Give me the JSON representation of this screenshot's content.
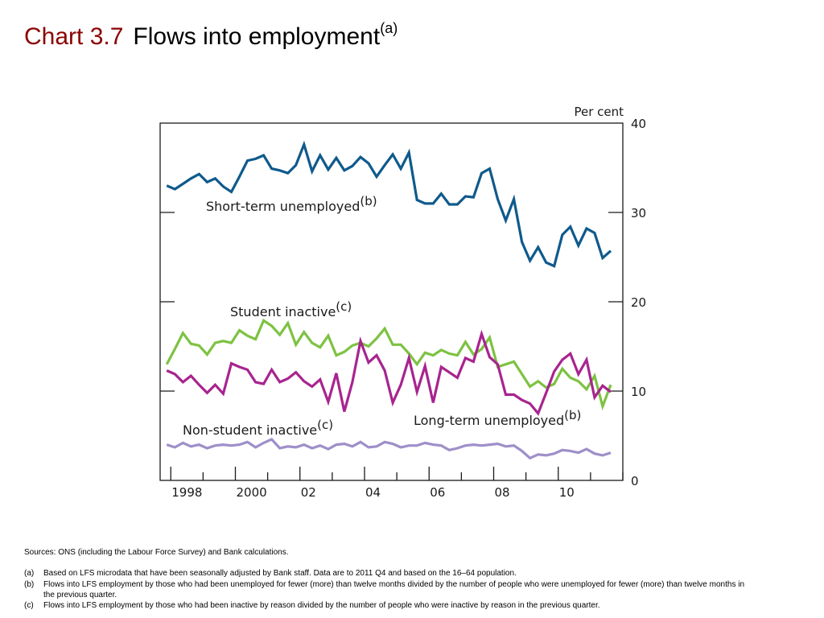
{
  "header": {
    "chart_number": "Chart 3.7",
    "title": "Flows into employment",
    "title_note": "(a)"
  },
  "chart_data": {
    "type": "line",
    "ylabel": "Per cent",
    "ylim": [
      0,
      40
    ],
    "yticks": [
      "0",
      "10",
      "20",
      "30",
      "40"
    ],
    "xlim": [
      1997.67,
      2012.0
    ],
    "xtick_labels": [
      {
        "x": 1998,
        "label": "1998"
      },
      {
        "x": 2000,
        "label": "2000"
      },
      {
        "x": 2002,
        "label": "02"
      },
      {
        "x": 2004,
        "label": "04"
      },
      {
        "x": 2006,
        "label": "06"
      },
      {
        "x": 2008,
        "label": "08"
      },
      {
        "x": 2010,
        "label": "10"
      }
    ],
    "grid": false,
    "x_start": 1997.875,
    "x_step": 0.25,
    "series": [
      {
        "name": "Short-term unemployed",
        "note": "(b)",
        "color": "#0f5a8c",
        "values": [
          33.0,
          32.6,
          33.2,
          33.8,
          34.3,
          33.4,
          33.8,
          32.9,
          32.3,
          34.0,
          35.8,
          36.0,
          36.4,
          34.9,
          34.7,
          34.4,
          35.3,
          37.6,
          34.6,
          36.4,
          34.8,
          36.1,
          34.7,
          35.2,
          36.2,
          35.5,
          34.0,
          35.3,
          36.5,
          34.9,
          36.7,
          31.4,
          31.0,
          31.0,
          32.1,
          30.9,
          30.9,
          31.8,
          31.7,
          34.4,
          34.9,
          31.5,
          29.1,
          31.5,
          26.7,
          24.6,
          26.1,
          24.4,
          24.0,
          27.5,
          28.4,
          26.3,
          28.2,
          27.7,
          24.9,
          25.7
        ]
      },
      {
        "name": "Student inactive",
        "note": "(c)",
        "color": "#7dc242",
        "values": [
          13.0,
          14.7,
          16.5,
          15.3,
          15.1,
          14.1,
          15.4,
          15.6,
          15.4,
          16.8,
          16.2,
          15.8,
          17.9,
          17.3,
          16.3,
          17.6,
          15.2,
          16.6,
          15.4,
          14.9,
          16.2,
          14.0,
          14.4,
          15.1,
          15.4,
          15.0,
          15.9,
          17.0,
          15.2,
          15.2,
          14.2,
          13.0,
          14.3,
          14.0,
          14.6,
          14.2,
          14.0,
          15.5,
          14.1,
          14.7,
          16.0,
          12.7,
          13.0,
          13.3,
          11.9,
          10.5,
          11.1,
          10.4,
          10.8,
          12.5,
          11.5,
          11.1,
          10.2,
          11.7,
          8.3,
          10.7
        ]
      },
      {
        "name": "Long-term unemployed",
        "note": "(b)",
        "color": "#a8248f",
        "values": [
          12.3,
          11.9,
          11.0,
          11.7,
          10.7,
          9.8,
          10.7,
          9.7,
          13.1,
          12.7,
          12.4,
          11.0,
          10.8,
          12.4,
          11.0,
          11.4,
          12.1,
          11.1,
          10.5,
          11.3,
          8.8,
          12.0,
          7.7,
          11.0,
          15.6,
          13.2,
          14.0,
          12.3,
          8.7,
          10.7,
          13.7,
          9.9,
          12.8,
          8.7,
          12.7,
          12.1,
          11.5,
          13.7,
          13.3,
          16.4,
          13.8,
          13.0,
          9.6,
          9.6,
          9.0,
          8.6,
          7.5,
          9.8,
          12.2,
          13.5,
          14.2,
          11.9,
          13.5,
          9.3,
          10.6,
          9.9
        ]
      },
      {
        "name": "Non-student inactive",
        "note": "(c)",
        "color": "#9e8fc9",
        "values": [
          4.0,
          3.7,
          4.2,
          3.8,
          4.0,
          3.6,
          3.9,
          4.0,
          3.9,
          4.0,
          4.3,
          3.7,
          4.2,
          4.6,
          3.6,
          3.8,
          3.7,
          4.0,
          3.6,
          3.9,
          3.5,
          4.0,
          4.1,
          3.8,
          4.3,
          3.7,
          3.8,
          4.3,
          4.1,
          3.7,
          3.9,
          3.9,
          4.2,
          4.0,
          3.9,
          3.4,
          3.6,
          3.9,
          4.0,
          3.9,
          4.0,
          4.1,
          3.8,
          3.9,
          3.3,
          2.5,
          2.9,
          2.8,
          3.0,
          3.4,
          3.3,
          3.1,
          3.5,
          3.0,
          2.8,
          3.1
        ]
      }
    ]
  },
  "footer": {
    "sources": "Sources:  ONS (including the Labour Force Survey) and Bank calculations.",
    "notes": [
      {
        "label": "(a)",
        "text": "Based on LFS microdata that have been seasonally adjusted by Bank staff.  Data are to 2011 Q4 and based on the 16–64 population."
      },
      {
        "label": "(b)",
        "text": "Flows into LFS employment by those who had been unemployed for fewer (more) than twelve months divided by the number of people who were unemployed for fewer (more) than twelve months in the previous quarter."
      },
      {
        "label": "(c)",
        "text": "Flows into LFS employment by those who had been inactive by reason divided by the number of people who were inactive by reason in the previous quarter."
      }
    ]
  }
}
